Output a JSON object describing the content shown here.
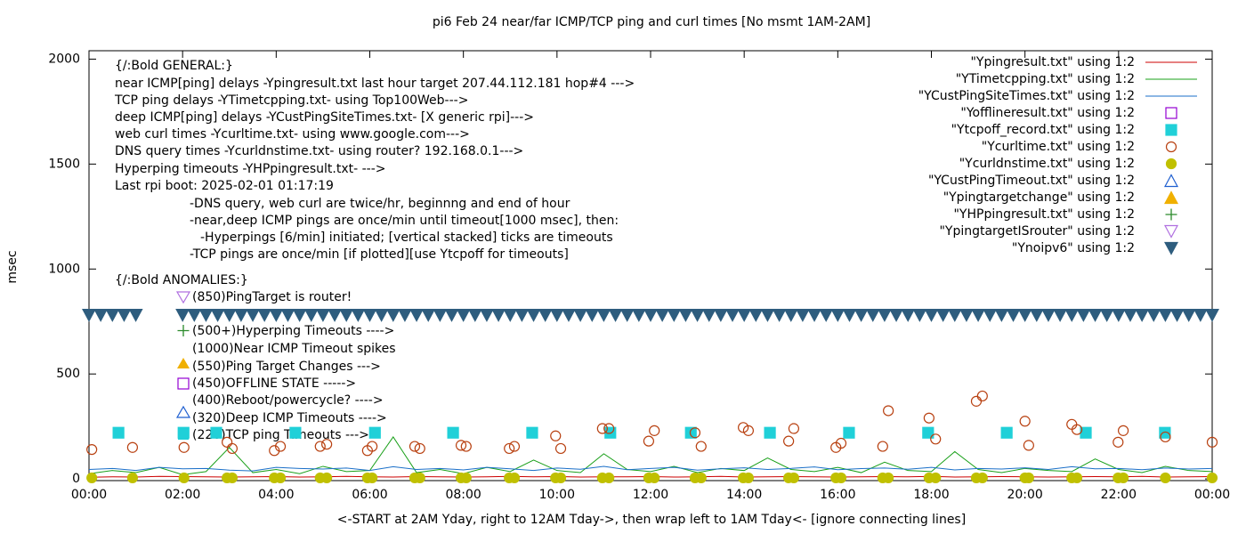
{
  "chart_data": {
    "type": "line",
    "title": "pi6 Feb 24  near/far ICMP/TCP ping and curl times [No msmt 1AM-2AM]",
    "xlabel": "<-START at 2AM Yday, right to 12AM Tday->, then wrap left to 1AM Tday<- [ignore connecting lines]",
    "ylabel": "msec",
    "xlim": [
      0,
      24
    ],
    "xticks": [
      {
        "value": 0,
        "label": "00:00"
      },
      {
        "value": 2,
        "label": "02:00"
      },
      {
        "value": 4,
        "label": "04:00"
      },
      {
        "value": 6,
        "label": "06:00"
      },
      {
        "value": 8,
        "label": "08:00"
      },
      {
        "value": 10,
        "label": "10:00"
      },
      {
        "value": 12,
        "label": "12:00"
      },
      {
        "value": 14,
        "label": "14:00"
      },
      {
        "value": 16,
        "label": "16:00"
      },
      {
        "value": 18,
        "label": "18:00"
      },
      {
        "value": 20,
        "label": "20:00"
      },
      {
        "value": 22,
        "label": "22:00"
      },
      {
        "value": 24,
        "label": "00:00"
      }
    ],
    "ylim": [
      -8,
      2040
    ],
    "yticks": [
      0,
      500,
      1000,
      1500,
      2000
    ],
    "annotations": [
      "{/:Bold GENERAL:}",
      "near ICMP[ping] delays -Ypingresult.txt last hour target 207.44.112.181 hop#4 --->",
      "TCP ping delays -YTimetcpping.txt- using Top100Web--->",
      "deep ICMP[ping] delays -YCustPingSiteTimes.txt- [X generic rpi]--->",
      "web curl times -Ycurltime.txt- using www.google.com--->",
      "DNS query times -Ycurldnstime.txt- using router? 192.168.0.1--->",
      "Hyperping timeouts -YHPpingresult.txt- --->",
      "Last rpi boot: 2025-02-01 01:17:19",
      "-DNS query, web curl are twice/hr, beginnng and end of hour",
      "-near,deep ICMP pings are once/min until timeout[1000 msec], then:",
      "-Hyperpings [6/min] initiated; [vertical stacked] ticks are timeouts",
      "-TCP pings are once/min [if plotted][use Ytcpoff for timeouts]",
      "{/:Bold ANOMALIES:}",
      "(850)PingTarget is router!",
      "(500+)Hyperping Timeouts ---->",
      "(1000)Near ICMP Timeout spikes",
      "(550)Ping Target Changes --->",
      "(450)OFFLINE STATE ----->",
      "(400)Reboot/powercycle? ---->",
      "(320)Deep ICMP Timeouts ---->",
      "(220)TCP ping Timeouts --->"
    ],
    "series": [
      {
        "name": "\"Ypingresult.txt\" using 1:2",
        "color": "#cc0000",
        "style": "line",
        "x": [
          0,
          0.5,
          1,
          1.5,
          2,
          2.5,
          3,
          3.5,
          4,
          4.5,
          5,
          5.5,
          6,
          6.5,
          7,
          7.5,
          8,
          8.5,
          9,
          9.5,
          10,
          10.5,
          11,
          11.5,
          12,
          12.5,
          13,
          13.5,
          14,
          14.5,
          15,
          15.5,
          16,
          16.5,
          17,
          17.5,
          18,
          18.5,
          19,
          19.5,
          20,
          20.5,
          21,
          21.5,
          22,
          22.5,
          23,
          23.5,
          24
        ],
        "values": [
          8,
          10,
          9,
          12,
          11,
          10,
          9,
          10,
          11,
          9,
          10,
          12,
          10,
          9,
          11,
          10,
          9,
          10,
          12,
          10,
          11,
          9,
          10,
          10,
          11,
          9,
          10,
          12,
          9,
          10,
          11,
          10,
          9,
          10,
          11,
          10,
          12,
          9,
          10,
          11,
          10,
          9,
          10,
          11,
          10,
          12,
          9,
          10,
          11
        ]
      },
      {
        "name": "\"YTimetcpping.txt\" using 1:2",
        "color": "#1aa01a",
        "style": "line",
        "x": [
          0,
          0.5,
          1,
          1.5,
          2,
          2.5,
          3,
          3.5,
          4,
          4.5,
          5,
          5.5,
          6,
          6.5,
          7,
          7.5,
          8,
          8.5,
          9,
          9.5,
          10,
          10.5,
          11,
          11.5,
          12,
          12.5,
          13,
          13.5,
          14,
          14.5,
          15,
          15.5,
          16,
          16.5,
          17,
          17.5,
          18,
          18.5,
          19,
          19.5,
          20,
          20.5,
          21,
          21.5,
          22,
          22.5,
          23,
          23.5,
          24
        ],
        "values": [
          25,
          40,
          30,
          55,
          20,
          35,
          150,
          30,
          45,
          25,
          60,
          35,
          40,
          200,
          30,
          45,
          25,
          55,
          35,
          90,
          40,
          30,
          120,
          45,
          35,
          60,
          30,
          50,
          40,
          100,
          45,
          35,
          55,
          30,
          80,
          40,
          35,
          130,
          45,
          30,
          50,
          40,
          35,
          95,
          45,
          30,
          60,
          40,
          35
        ]
      },
      {
        "name": "\"YCustPingSiteTimes.txt\" using 1:2",
        "color": "#1a6fc8",
        "style": "line",
        "x": [
          0,
          0.5,
          1,
          1.5,
          2,
          2.5,
          3,
          3.5,
          4,
          4.5,
          5,
          5.5,
          6,
          6.5,
          7,
          7.5,
          8,
          8.5,
          9,
          9.5,
          10,
          10.5,
          11,
          11.5,
          12,
          12.5,
          13,
          13.5,
          14,
          14.5,
          15,
          15.5,
          16,
          16.5,
          17,
          17.5,
          18,
          18.5,
          19,
          19.5,
          20,
          20.5,
          21,
          21.5,
          22,
          22.5,
          23,
          23.5,
          24
        ],
        "values": [
          45,
          50,
          40,
          55,
          48,
          50,
          42,
          38,
          55,
          50,
          47,
          52,
          40,
          58,
          45,
          50,
          43,
          55,
          48,
          40,
          52,
          46,
          60,
          44,
          50,
          55,
          42,
          48,
          53,
          45,
          50,
          57,
          44,
          49,
          52,
          46,
          55,
          43,
          50,
          47,
          53,
          45,
          58,
          48,
          50,
          44,
          52,
          47,
          50
        ]
      },
      {
        "name": "\"Yofflineresult.txt\" using 1:2",
        "color": "#9400d3",
        "style": "marker",
        "marker": "square-open",
        "x": [],
        "values": []
      },
      {
        "name": "\"Ytcpoff_record.txt\" using 1:2",
        "color": "#20d0d8",
        "style": "marker",
        "marker": "square-filled",
        "x": [
          0.63,
          2.02,
          2.72,
          4.41,
          6.11,
          7.78,
          9.47,
          11.14,
          12.86,
          14.55,
          16.24,
          17.93,
          19.61,
          21.3,
          22.99
        ],
        "values": [
          220,
          220,
          220,
          220,
          220,
          220,
          220,
          220,
          220,
          220,
          220,
          220,
          220,
          220,
          220
        ]
      },
      {
        "name": "\"Ycurltime.txt\" using 1:2",
        "color": "#b84010",
        "style": "marker",
        "marker": "circle-open",
        "x": [
          0.06,
          0.93,
          2.03,
          2.95,
          3.06,
          3.96,
          4.09,
          4.94,
          5.08,
          5.95,
          6.05,
          6.96,
          7.07,
          7.95,
          8.06,
          8.98,
          9.09,
          9.97,
          10.08,
          10.97,
          11.11,
          11.96,
          12.08,
          12.95,
          13.08,
          13.98,
          14.09,
          14.95,
          15.06,
          15.96,
          16.07,
          16.96,
          17.08,
          17.95,
          18.09,
          18.96,
          19.09,
          20.0,
          20.08,
          21.0,
          21.11,
          21.99,
          22.1,
          23.0,
          24.0
        ],
        "values": [
          140,
          150,
          150,
          175,
          145,
          135,
          155,
          155,
          165,
          135,
          155,
          155,
          145,
          160,
          155,
          145,
          155,
          205,
          145,
          240,
          240,
          180,
          230,
          220,
          155,
          245,
          230,
          180,
          240,
          150,
          170,
          155,
          325,
          290,
          190,
          370,
          395,
          275,
          160,
          260,
          235,
          175,
          230,
          200,
          175
        ]
      },
      {
        "name": "\"Ycurldnstime.txt\" using 1:2",
        "color": "#c0c000",
        "style": "marker",
        "marker": "circle-filled",
        "x": [
          0.06,
          0.93,
          2.03,
          2.95,
          3.06,
          3.96,
          4.09,
          4.94,
          5.08,
          5.95,
          6.05,
          6.96,
          7.07,
          7.95,
          8.06,
          8.98,
          9.09,
          9.97,
          10.08,
          10.97,
          11.11,
          11.96,
          12.08,
          12.95,
          13.08,
          13.98,
          14.09,
          14.95,
          15.06,
          15.96,
          16.07,
          16.96,
          17.08,
          17.95,
          18.09,
          18.96,
          19.09,
          20.0,
          20.08,
          21.0,
          21.11,
          21.99,
          22.1,
          23.0,
          24.0
        ],
        "values": [
          5,
          5,
          5,
          5,
          5,
          5,
          5,
          5,
          5,
          5,
          5,
          5,
          5,
          5,
          5,
          5,
          5,
          5,
          5,
          5,
          5,
          5,
          5,
          5,
          5,
          5,
          5,
          5,
          5,
          5,
          5,
          5,
          5,
          5,
          5,
          5,
          5,
          5,
          5,
          5,
          5,
          5,
          5,
          5,
          5
        ]
      },
      {
        "name": "\"YCustPingTimeout.txt\" using 1:2",
        "color": "#1f5fd0",
        "style": "marker",
        "marker": "triangle-open",
        "x": [],
        "values": []
      },
      {
        "name": "\"Ypingtargetchange\" using 1:2",
        "color": "#f0b000",
        "style": "marker",
        "marker": "triangle-filled",
        "x": [],
        "values": []
      },
      {
        "name": "\"YHPpingresult.txt\" using 1:2",
        "color": "#2a8a2a",
        "style": "marker",
        "marker": "plus",
        "x": [],
        "values": []
      },
      {
        "name": "\"YpingtargetISrouter\" using 1:2",
        "color": "#b070e0",
        "style": "marker",
        "marker": "triangle-down-open",
        "x": [],
        "values": []
      },
      {
        "name": "\"Ynoipv6\" using 1:2",
        "color": "#2e5d7e",
        "style": "marker",
        "marker": "triangle-down-filled",
        "x": [
          0,
          0.25,
          0.5,
          0.75,
          1,
          2,
          2.25,
          2.5,
          2.75,
          3,
          3.25,
          3.5,
          3.75,
          4,
          4.25,
          4.5,
          4.75,
          5,
          5.25,
          5.5,
          5.75,
          6,
          6.25,
          6.5,
          6.75,
          7,
          7.25,
          7.5,
          7.75,
          8,
          8.25,
          8.5,
          8.75,
          9,
          9.25,
          9.5,
          9.75,
          10,
          10.25,
          10.5,
          10.75,
          11,
          11.25,
          11.5,
          11.75,
          12,
          12.25,
          12.5,
          12.75,
          13,
          13.25,
          13.5,
          13.75,
          14,
          14.25,
          14.5,
          14.75,
          15,
          15.25,
          15.5,
          15.75,
          16,
          16.25,
          16.5,
          16.75,
          17,
          17.25,
          17.5,
          17.75,
          18,
          18.25,
          18.5,
          18.75,
          19,
          19.25,
          19.5,
          19.75,
          20,
          20.25,
          20.5,
          20.75,
          21,
          21.25,
          21.5,
          21.75,
          22,
          22.25,
          22.5,
          22.75,
          23,
          23.25,
          23.5,
          23.75,
          24
        ],
        "values": [
          780,
          780,
          780,
          780,
          780,
          780,
          780,
          780,
          780,
          780,
          780,
          780,
          780,
          780,
          780,
          780,
          780,
          780,
          780,
          780,
          780,
          780,
          780,
          780,
          780,
          780,
          780,
          780,
          780,
          780,
          780,
          780,
          780,
          780,
          780,
          780,
          780,
          780,
          780,
          780,
          780,
          780,
          780,
          780,
          780,
          780,
          780,
          780,
          780,
          780,
          780,
          780,
          780,
          780,
          780,
          780,
          780,
          780,
          780,
          780,
          780,
          780,
          780,
          780,
          780,
          780,
          780,
          780,
          780,
          780,
          780,
          780,
          780,
          780,
          780,
          780,
          780,
          780,
          780,
          780,
          780,
          780,
          780,
          780,
          780,
          780,
          780,
          780,
          780,
          780,
          780,
          780,
          780,
          780
        ]
      }
    ]
  }
}
